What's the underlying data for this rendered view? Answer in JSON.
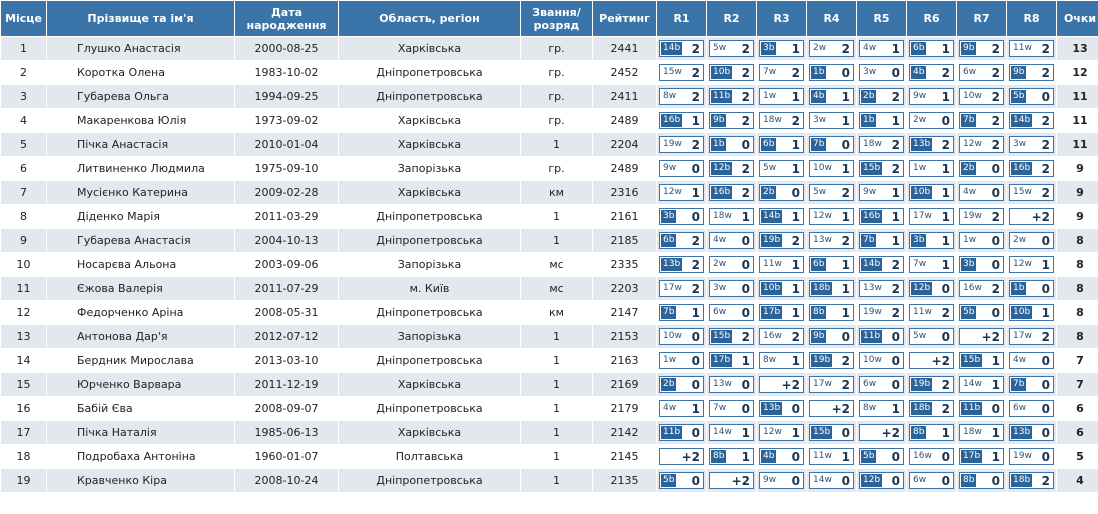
{
  "headers": {
    "place": "Місце",
    "name": "Прізвище та ім'я",
    "birth": "Дата народження",
    "region": "Область, регіон",
    "title": "Звання/ розряд",
    "rating": "Рейтинг",
    "rounds": [
      "R1",
      "R2",
      "R3",
      "R4",
      "R5",
      "R6",
      "R7",
      "R8"
    ],
    "points": "Очки"
  },
  "rows": [
    {
      "place": "1",
      "name": "Глушко Анастасія",
      "birth": "2000-08-25",
      "region": "Харківська",
      "title": "гр.",
      "rating": "2441",
      "points": "13",
      "r": [
        {
          "o": "14",
          "c": "b",
          "s": "2"
        },
        {
          "o": "5",
          "c": "w",
          "s": "2"
        },
        {
          "o": "3",
          "c": "b",
          "s": "1"
        },
        {
          "o": "2",
          "c": "w",
          "s": "2"
        },
        {
          "o": "4",
          "c": "w",
          "s": "1"
        },
        {
          "o": "6",
          "c": "b",
          "s": "1"
        },
        {
          "o": "9",
          "c": "b",
          "s": "2"
        },
        {
          "o": "11",
          "c": "w",
          "s": "2"
        }
      ]
    },
    {
      "place": "2",
      "name": "Коротка Олена",
      "birth": "1983-10-02",
      "region": "Дніпропетровська",
      "title": "гр.",
      "rating": "2452",
      "points": "12",
      "r": [
        {
          "o": "15",
          "c": "w",
          "s": "2"
        },
        {
          "o": "10",
          "c": "b",
          "s": "2"
        },
        {
          "o": "7",
          "c": "w",
          "s": "2"
        },
        {
          "o": "1",
          "c": "b",
          "s": "0"
        },
        {
          "o": "3",
          "c": "w",
          "s": "0"
        },
        {
          "o": "4",
          "c": "b",
          "s": "2"
        },
        {
          "o": "6",
          "c": "w",
          "s": "2"
        },
        {
          "o": "9",
          "c": "b",
          "s": "2"
        }
      ]
    },
    {
      "place": "3",
      "name": "Губарева Ольга",
      "birth": "1994-09-25",
      "region": "Дніпропетровська",
      "title": "гр.",
      "rating": "2411",
      "points": "11",
      "r": [
        {
          "o": "8",
          "c": "w",
          "s": "2"
        },
        {
          "o": "11",
          "c": "b",
          "s": "2"
        },
        {
          "o": "1",
          "c": "w",
          "s": "1"
        },
        {
          "o": "4",
          "c": "b",
          "s": "1"
        },
        {
          "o": "2",
          "c": "b",
          "s": "2"
        },
        {
          "o": "9",
          "c": "w",
          "s": "1"
        },
        {
          "o": "10",
          "c": "w",
          "s": "2"
        },
        {
          "o": "5",
          "c": "b",
          "s": "0"
        }
      ]
    },
    {
      "place": "4",
      "name": "Макаренкова Юлія",
      "birth": "1973-09-02",
      "region": "Харківська",
      "title": "гр.",
      "rating": "2489",
      "points": "11",
      "r": [
        {
          "o": "16",
          "c": "b",
          "s": "1"
        },
        {
          "o": "9",
          "c": "b",
          "s": "2"
        },
        {
          "o": "18",
          "c": "w",
          "s": "2"
        },
        {
          "o": "3",
          "c": "w",
          "s": "1"
        },
        {
          "o": "1",
          "c": "b",
          "s": "1"
        },
        {
          "o": "2",
          "c": "w",
          "s": "0"
        },
        {
          "o": "7",
          "c": "b",
          "s": "2"
        },
        {
          "o": "14",
          "c": "b",
          "s": "2"
        }
      ]
    },
    {
      "place": "5",
      "name": "Пічка Анастасія",
      "birth": "2010-01-04",
      "region": "Харківська",
      "title": "1",
      "rating": "2204",
      "points": "11",
      "r": [
        {
          "o": "19",
          "c": "w",
          "s": "2"
        },
        {
          "o": "1",
          "c": "b",
          "s": "0"
        },
        {
          "o": "6",
          "c": "b",
          "s": "1"
        },
        {
          "o": "7",
          "c": "b",
          "s": "0"
        },
        {
          "o": "18",
          "c": "w",
          "s": "2"
        },
        {
          "o": "13",
          "c": "b",
          "s": "2"
        },
        {
          "o": "12",
          "c": "w",
          "s": "2"
        },
        {
          "o": "3",
          "c": "w",
          "s": "2"
        }
      ]
    },
    {
      "place": "6",
      "name": "Литвиненко Людмила",
      "birth": "1975-09-10",
      "region": "Запорізька",
      "title": "гр.",
      "rating": "2489",
      "points": "9",
      "r": [
        {
          "o": "9",
          "c": "w",
          "s": "0"
        },
        {
          "o": "12",
          "c": "b",
          "s": "2"
        },
        {
          "o": "5",
          "c": "w",
          "s": "1"
        },
        {
          "o": "10",
          "c": "w",
          "s": "1"
        },
        {
          "o": "15",
          "c": "b",
          "s": "2"
        },
        {
          "o": "1",
          "c": "w",
          "s": "1"
        },
        {
          "o": "2",
          "c": "b",
          "s": "0"
        },
        {
          "o": "16",
          "c": "b",
          "s": "2"
        }
      ]
    },
    {
      "place": "7",
      "name": "Мусієнко Катерина",
      "birth": "2009-02-28",
      "region": "Харківська",
      "title": "км",
      "rating": "2316",
      "points": "9",
      "r": [
        {
          "o": "12",
          "c": "w",
          "s": "1"
        },
        {
          "o": "16",
          "c": "b",
          "s": "2"
        },
        {
          "o": "2",
          "c": "b",
          "s": "0"
        },
        {
          "o": "5",
          "c": "w",
          "s": "2"
        },
        {
          "o": "9",
          "c": "w",
          "s": "1"
        },
        {
          "o": "10",
          "c": "b",
          "s": "1"
        },
        {
          "o": "4",
          "c": "w",
          "s": "0"
        },
        {
          "o": "15",
          "c": "w",
          "s": "2"
        }
      ]
    },
    {
      "place": "8",
      "name": "Діденко Марія",
      "birth": "2011-03-29",
      "region": "Дніпропетровська",
      "title": "1",
      "rating": "2161",
      "points": "9",
      "r": [
        {
          "o": "3",
          "c": "b",
          "s": "0"
        },
        {
          "o": "18",
          "c": "w",
          "s": "1"
        },
        {
          "o": "14",
          "c": "b",
          "s": "1"
        },
        {
          "o": "12",
          "c": "w",
          "s": "1"
        },
        {
          "o": "16",
          "c": "b",
          "s": "1"
        },
        {
          "o": "17",
          "c": "w",
          "s": "1"
        },
        {
          "o": "19",
          "c": "w",
          "s": "2"
        },
        {
          "o": "",
          "c": "",
          "s": "+2"
        }
      ]
    },
    {
      "place": "9",
      "name": "Губарева Анастасія",
      "birth": "2004-10-13",
      "region": "Дніпропетровська",
      "title": "1",
      "rating": "2185",
      "points": "8",
      "r": [
        {
          "o": "6",
          "c": "b",
          "s": "2"
        },
        {
          "o": "4",
          "c": "w",
          "s": "0"
        },
        {
          "o": "19",
          "c": "b",
          "s": "2"
        },
        {
          "o": "13",
          "c": "w",
          "s": "2"
        },
        {
          "o": "7",
          "c": "b",
          "s": "1"
        },
        {
          "o": "3",
          "c": "b",
          "s": "1"
        },
        {
          "o": "1",
          "c": "w",
          "s": "0"
        },
        {
          "o": "2",
          "c": "w",
          "s": "0"
        }
      ]
    },
    {
      "place": "10",
      "name": "Носарєва Альона",
      "birth": "2003-09-06",
      "region": "Запорізька",
      "title": "мс",
      "rating": "2335",
      "points": "8",
      "r": [
        {
          "o": "13",
          "c": "b",
          "s": "2"
        },
        {
          "o": "2",
          "c": "w",
          "s": "0"
        },
        {
          "o": "11",
          "c": "w",
          "s": "1"
        },
        {
          "o": "6",
          "c": "b",
          "s": "1"
        },
        {
          "o": "14",
          "c": "b",
          "s": "2"
        },
        {
          "o": "7",
          "c": "w",
          "s": "1"
        },
        {
          "o": "3",
          "c": "b",
          "s": "0"
        },
        {
          "o": "12",
          "c": "w",
          "s": "1"
        }
      ]
    },
    {
      "place": "11",
      "name": "Єжова Валерія",
      "birth": "2011-07-29",
      "region": "м. Київ",
      "title": "мс",
      "rating": "2203",
      "points": "8",
      "r": [
        {
          "o": "17",
          "c": "w",
          "s": "2"
        },
        {
          "o": "3",
          "c": "w",
          "s": "0"
        },
        {
          "o": "10",
          "c": "b",
          "s": "1"
        },
        {
          "o": "18",
          "c": "b",
          "s": "1"
        },
        {
          "o": "13",
          "c": "w",
          "s": "2"
        },
        {
          "o": "12",
          "c": "b",
          "s": "0"
        },
        {
          "o": "16",
          "c": "w",
          "s": "2"
        },
        {
          "o": "1",
          "c": "b",
          "s": "0"
        }
      ]
    },
    {
      "place": "12",
      "name": "Федорченко Аріна",
      "birth": "2008-05-31",
      "region": "Дніпропетровська",
      "title": "км",
      "rating": "2147",
      "points": "8",
      "r": [
        {
          "o": "7",
          "c": "b",
          "s": "1"
        },
        {
          "o": "6",
          "c": "w",
          "s": "0"
        },
        {
          "o": "17",
          "c": "b",
          "s": "1"
        },
        {
          "o": "8",
          "c": "b",
          "s": "1"
        },
        {
          "o": "19",
          "c": "w",
          "s": "2"
        },
        {
          "o": "11",
          "c": "w",
          "s": "2"
        },
        {
          "o": "5",
          "c": "b",
          "s": "0"
        },
        {
          "o": "10",
          "c": "b",
          "s": "1"
        }
      ]
    },
    {
      "place": "13",
      "name": "Антонова Дар'я",
      "birth": "2012-07-12",
      "region": "Запорізька",
      "title": "1",
      "rating": "2153",
      "points": "8",
      "r": [
        {
          "o": "10",
          "c": "w",
          "s": "0"
        },
        {
          "o": "15",
          "c": "b",
          "s": "2"
        },
        {
          "o": "16",
          "c": "w",
          "s": "2"
        },
        {
          "o": "9",
          "c": "b",
          "s": "0"
        },
        {
          "o": "11",
          "c": "b",
          "s": "0"
        },
        {
          "o": "5",
          "c": "w",
          "s": "0"
        },
        {
          "o": "",
          "c": "",
          "s": "+2"
        },
        {
          "o": "17",
          "c": "w",
          "s": "2"
        }
      ]
    },
    {
      "place": "14",
      "name": "Бердник Мирослава",
      "birth": "2013-03-10",
      "region": "Дніпропетровська",
      "title": "1",
      "rating": "2163",
      "points": "7",
      "r": [
        {
          "o": "1",
          "c": "w",
          "s": "0"
        },
        {
          "o": "17",
          "c": "b",
          "s": "1"
        },
        {
          "o": "8",
          "c": "w",
          "s": "1"
        },
        {
          "o": "19",
          "c": "b",
          "s": "2"
        },
        {
          "o": "10",
          "c": "w",
          "s": "0"
        },
        {
          "o": "",
          "c": "",
          "s": "+2"
        },
        {
          "o": "15",
          "c": "b",
          "s": "1"
        },
        {
          "o": "4",
          "c": "w",
          "s": "0"
        }
      ]
    },
    {
      "place": "15",
      "name": "Юрченко Варвара",
      "birth": "2011-12-19",
      "region": "Харківська",
      "title": "1",
      "rating": "2169",
      "points": "7",
      "r": [
        {
          "o": "2",
          "c": "b",
          "s": "0"
        },
        {
          "o": "13",
          "c": "w",
          "s": "0"
        },
        {
          "o": "",
          "c": "",
          "s": "+2"
        },
        {
          "o": "17",
          "c": "w",
          "s": "2"
        },
        {
          "o": "6",
          "c": "w",
          "s": "0"
        },
        {
          "o": "19",
          "c": "b",
          "s": "2"
        },
        {
          "o": "14",
          "c": "w",
          "s": "1"
        },
        {
          "o": "7",
          "c": "b",
          "s": "0"
        }
      ]
    },
    {
      "place": "16",
      "name": "Бабій Єва",
      "birth": "2008-09-07",
      "region": "Дніпропетровська",
      "title": "1",
      "rating": "2179",
      "points": "6",
      "r": [
        {
          "o": "4",
          "c": "w",
          "s": "1"
        },
        {
          "o": "7",
          "c": "w",
          "s": "0"
        },
        {
          "o": "13",
          "c": "b",
          "s": "0"
        },
        {
          "o": "",
          "c": "",
          "s": "+2"
        },
        {
          "o": "8",
          "c": "w",
          "s": "1"
        },
        {
          "o": "18",
          "c": "b",
          "s": "2"
        },
        {
          "o": "11",
          "c": "b",
          "s": "0"
        },
        {
          "o": "6",
          "c": "w",
          "s": "0"
        }
      ]
    },
    {
      "place": "17",
      "name": "Пічка Наталія",
      "birth": "1985-06-13",
      "region": "Харківська",
      "title": "1",
      "rating": "2142",
      "points": "6",
      "r": [
        {
          "o": "11",
          "c": "b",
          "s": "0"
        },
        {
          "o": "14",
          "c": "w",
          "s": "1"
        },
        {
          "o": "12",
          "c": "w",
          "s": "1"
        },
        {
          "o": "15",
          "c": "b",
          "s": "0"
        },
        {
          "o": "",
          "c": "",
          "s": "+2"
        },
        {
          "o": "8",
          "c": "b",
          "s": "1"
        },
        {
          "o": "18",
          "c": "w",
          "s": "1"
        },
        {
          "o": "13",
          "c": "b",
          "s": "0"
        }
      ]
    },
    {
      "place": "18",
      "name": "Подробаха Антоніна",
      "birth": "1960-01-07",
      "region": "Полтавська",
      "title": "1",
      "rating": "2145",
      "points": "5",
      "r": [
        {
          "o": "",
          "c": "",
          "s": "+2"
        },
        {
          "o": "8",
          "c": "b",
          "s": "1"
        },
        {
          "o": "4",
          "c": "b",
          "s": "0"
        },
        {
          "o": "11",
          "c": "w",
          "s": "1"
        },
        {
          "o": "5",
          "c": "b",
          "s": "0"
        },
        {
          "o": "16",
          "c": "w",
          "s": "0"
        },
        {
          "o": "17",
          "c": "b",
          "s": "1"
        },
        {
          "o": "19",
          "c": "w",
          "s": "0"
        }
      ]
    },
    {
      "place": "19",
      "name": "Кравченко Кіра",
      "birth": "2008-10-24",
      "region": "Дніпропетровська",
      "title": "1",
      "rating": "2135",
      "points": "4",
      "r": [
        {
          "o": "5",
          "c": "b",
          "s": "0"
        },
        {
          "o": "",
          "c": "",
          "s": "+2"
        },
        {
          "o": "9",
          "c": "w",
          "s": "0"
        },
        {
          "o": "14",
          "c": "w",
          "s": "0"
        },
        {
          "o": "12",
          "c": "b",
          "s": "0"
        },
        {
          "o": "6",
          "c": "w",
          "s": "0"
        },
        {
          "o": "8",
          "c": "b",
          "s": "0"
        },
        {
          "o": "18",
          "c": "b",
          "s": "2"
        }
      ]
    }
  ]
}
